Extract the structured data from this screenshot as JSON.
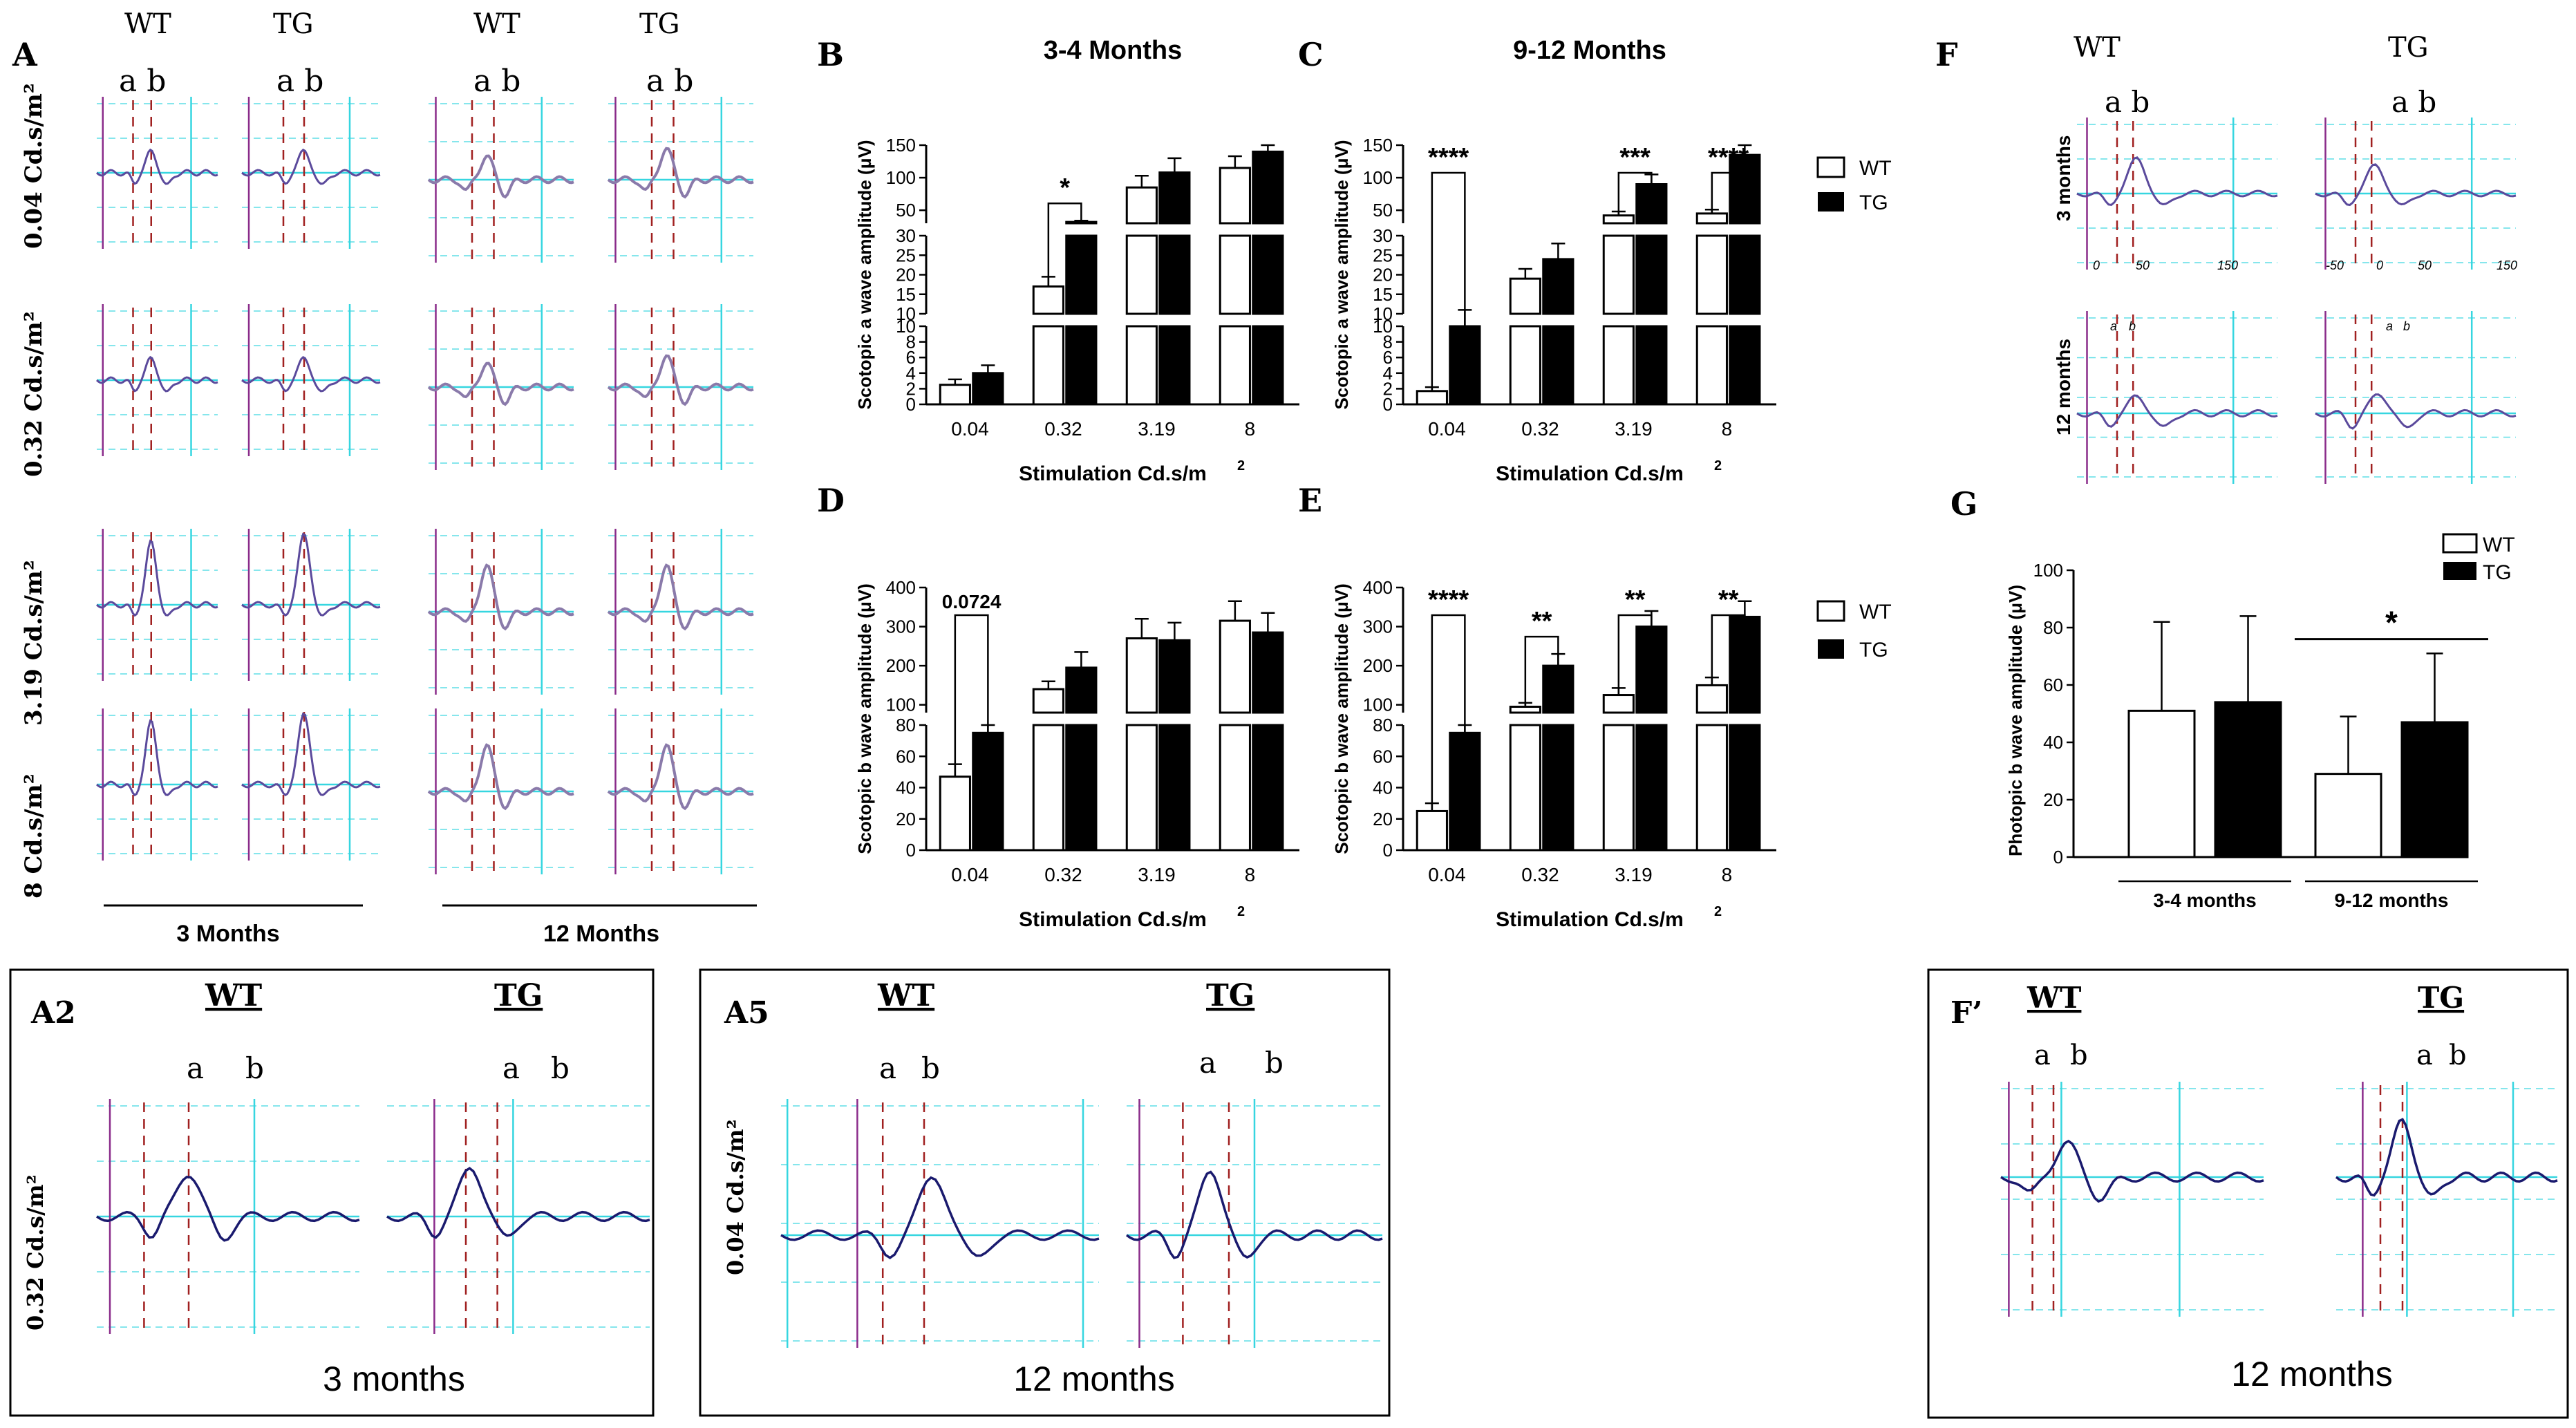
{
  "panel_letters": {
    "A": "A",
    "B": "B",
    "C": "C",
    "D": "D",
    "E": "E",
    "F": "F",
    "G": "G",
    "A2": "A2",
    "A5": "A5",
    "Fp": "F’"
  },
  "panelA": {
    "wt": "WT",
    "tg": "TG",
    "ab": "a b",
    "rows": [
      "0.04 Cd.s/m²",
      "0.32 Cd.s/m²",
      "3.19  Cd.s/m²",
      "8 Cd.s/m²"
    ],
    "age3": "3 Months",
    "age12": "12 Months"
  },
  "panelF": {
    "wt": "WT",
    "tg": "TG",
    "ab": "a b",
    "a": "a",
    "b": "b",
    "row3": "3 months",
    "row12": "12 months",
    "ticks_wt": [
      "0",
      "50",
      "150"
    ],
    "ticks_tg": [
      "-50",
      "0",
      "50",
      "150"
    ]
  },
  "panelA2": {
    "wt": "WT",
    "tg": "TG",
    "a": "a",
    "b": "b",
    "stim": "0.32 Cd.s/m²",
    "caption": "3 months"
  },
  "panelA5": {
    "wt": "WT",
    "tg": "TG",
    "a": "a",
    "b": "b",
    "stim": "0.04 Cd.s/m²",
    "caption": "12 months"
  },
  "panelFp": {
    "wt": "WT",
    "tg": "TG",
    "a": "a",
    "b": "b",
    "caption": "12 months"
  },
  "legend": {
    "wt": "WT",
    "tg": "TG"
  },
  "chart_data": [
    {
      "id": "B",
      "type": "bar",
      "title": "3-4 Months",
      "xlabel": "Stimulation Cd.s/m2",
      "ylabel": "Scotopic a wave amplitude (μV)",
      "categories": [
        "0.04",
        "0.32",
        "3.19",
        "8"
      ],
      "series": [
        {
          "name": "WT",
          "values": [
            2.5,
            17,
            85,
            115
          ],
          "errors": [
            0.7,
            2.5,
            18,
            18
          ]
        },
        {
          "name": "TG",
          "values": [
            4,
            32,
            108,
            140
          ],
          "errors": [
            1,
            2,
            22,
            25
          ]
        }
      ],
      "y_segments": [
        {
          "range": [
            0,
            10
          ],
          "ticks": [
            "0",
            "2",
            "4",
            "6",
            "8",
            "10"
          ]
        },
        {
          "range": [
            10,
            30
          ],
          "ticks": [
            "10",
            "15",
            "20",
            "25",
            "30"
          ]
        },
        {
          "range": [
            30,
            150
          ],
          "ticks": [
            "50",
            "100",
            "150"
          ]
        }
      ],
      "significance": [
        {
          "category": "0.32",
          "label": "*"
        }
      ]
    },
    {
      "id": "C",
      "type": "bar",
      "title": "9-12 Months",
      "xlabel": "Stimulation Cd.s/m2",
      "ylabel": "Scotopic a wave amplitude (μV)",
      "categories": [
        "0.04",
        "0.32",
        "3.19",
        "8"
      ],
      "series": [
        {
          "name": "WT",
          "values": [
            1.7,
            19,
            42,
            45
          ],
          "errors": [
            0.5,
            2.5,
            6,
            6
          ]
        },
        {
          "name": "TG",
          "values": [
            10,
            24,
            90,
            135
          ],
          "errors": [
            1,
            4,
            15,
            22
          ]
        }
      ],
      "y_segments": [
        {
          "range": [
            0,
            10
          ],
          "ticks": [
            "0",
            "2",
            "4",
            "6",
            "8",
            "10"
          ]
        },
        {
          "range": [
            10,
            30
          ],
          "ticks": [
            "10",
            "15",
            "20",
            "25",
            "30"
          ]
        },
        {
          "range": [
            30,
            150
          ],
          "ticks": [
            "50",
            "100",
            "150"
          ]
        }
      ],
      "significance": [
        {
          "category": "0.04",
          "label": "****"
        },
        {
          "category": "3.19",
          "label": "***"
        },
        {
          "category": "8",
          "label": "****"
        }
      ]
    },
    {
      "id": "D",
      "type": "bar",
      "xlabel": "Stimulation Cd.s/m2",
      "ylabel": "Scotopic b wave amplitude (μV)",
      "categories": [
        "0.04",
        "0.32",
        "3.19",
        "8"
      ],
      "series": [
        {
          "name": "WT",
          "values": [
            47,
            140,
            270,
            315
          ],
          "errors": [
            8,
            20,
            50,
            50
          ]
        },
        {
          "name": "TG",
          "values": [
            75,
            195,
            265,
            285
          ],
          "errors": [
            5,
            40,
            45,
            50
          ]
        }
      ],
      "y_segments": [
        {
          "range": [
            0,
            80
          ],
          "ticks": [
            "0",
            "20",
            "40",
            "60",
            "80"
          ]
        },
        {
          "range": [
            80,
            400
          ],
          "ticks": [
            "100",
            "200",
            "300",
            "400"
          ]
        }
      ],
      "significance": [
        {
          "category": "0.04",
          "label": "0.0724"
        }
      ]
    },
    {
      "id": "E",
      "type": "bar",
      "xlabel": "Stimulation Cd.s/m2",
      "ylabel": "Scotopic b wave amplitude (μV)",
      "categories": [
        "0.04",
        "0.32",
        "3.19",
        "8"
      ],
      "series": [
        {
          "name": "WT",
          "values": [
            25,
            95,
            125,
            150
          ],
          "errors": [
            5,
            10,
            18,
            20
          ]
        },
        {
          "name": "TG",
          "values": [
            75,
            200,
            300,
            325
          ],
          "errors": [
            5,
            30,
            40,
            40
          ]
        }
      ],
      "y_segments": [
        {
          "range": [
            0,
            80
          ],
          "ticks": [
            "0",
            "20",
            "40",
            "60",
            "80"
          ]
        },
        {
          "range": [
            80,
            400
          ],
          "ticks": [
            "100",
            "200",
            "300",
            "400"
          ]
        }
      ],
      "significance": [
        {
          "category": "0.04",
          "label": "****"
        },
        {
          "category": "0.32",
          "label": "**"
        },
        {
          "category": "3.19",
          "label": "**"
        },
        {
          "category": "8",
          "label": "**"
        }
      ]
    },
    {
      "id": "G",
      "type": "bar",
      "ylabel": "Photopic b wave amplitude (μV)",
      "categories": [
        "3-4 months",
        "9-12 months"
      ],
      "series": [
        {
          "name": "WT",
          "values": [
            51,
            29
          ],
          "errors": [
            31,
            20
          ]
        },
        {
          "name": "TG",
          "values": [
            54,
            47
          ],
          "errors": [
            30,
            24
          ]
        }
      ],
      "ylim": [
        0,
        100
      ],
      "yticks": [
        "0",
        "20",
        "40",
        "60",
        "80",
        "100"
      ],
      "significance": [
        {
          "category": "9-12 months",
          "label": "*"
        }
      ]
    }
  ]
}
